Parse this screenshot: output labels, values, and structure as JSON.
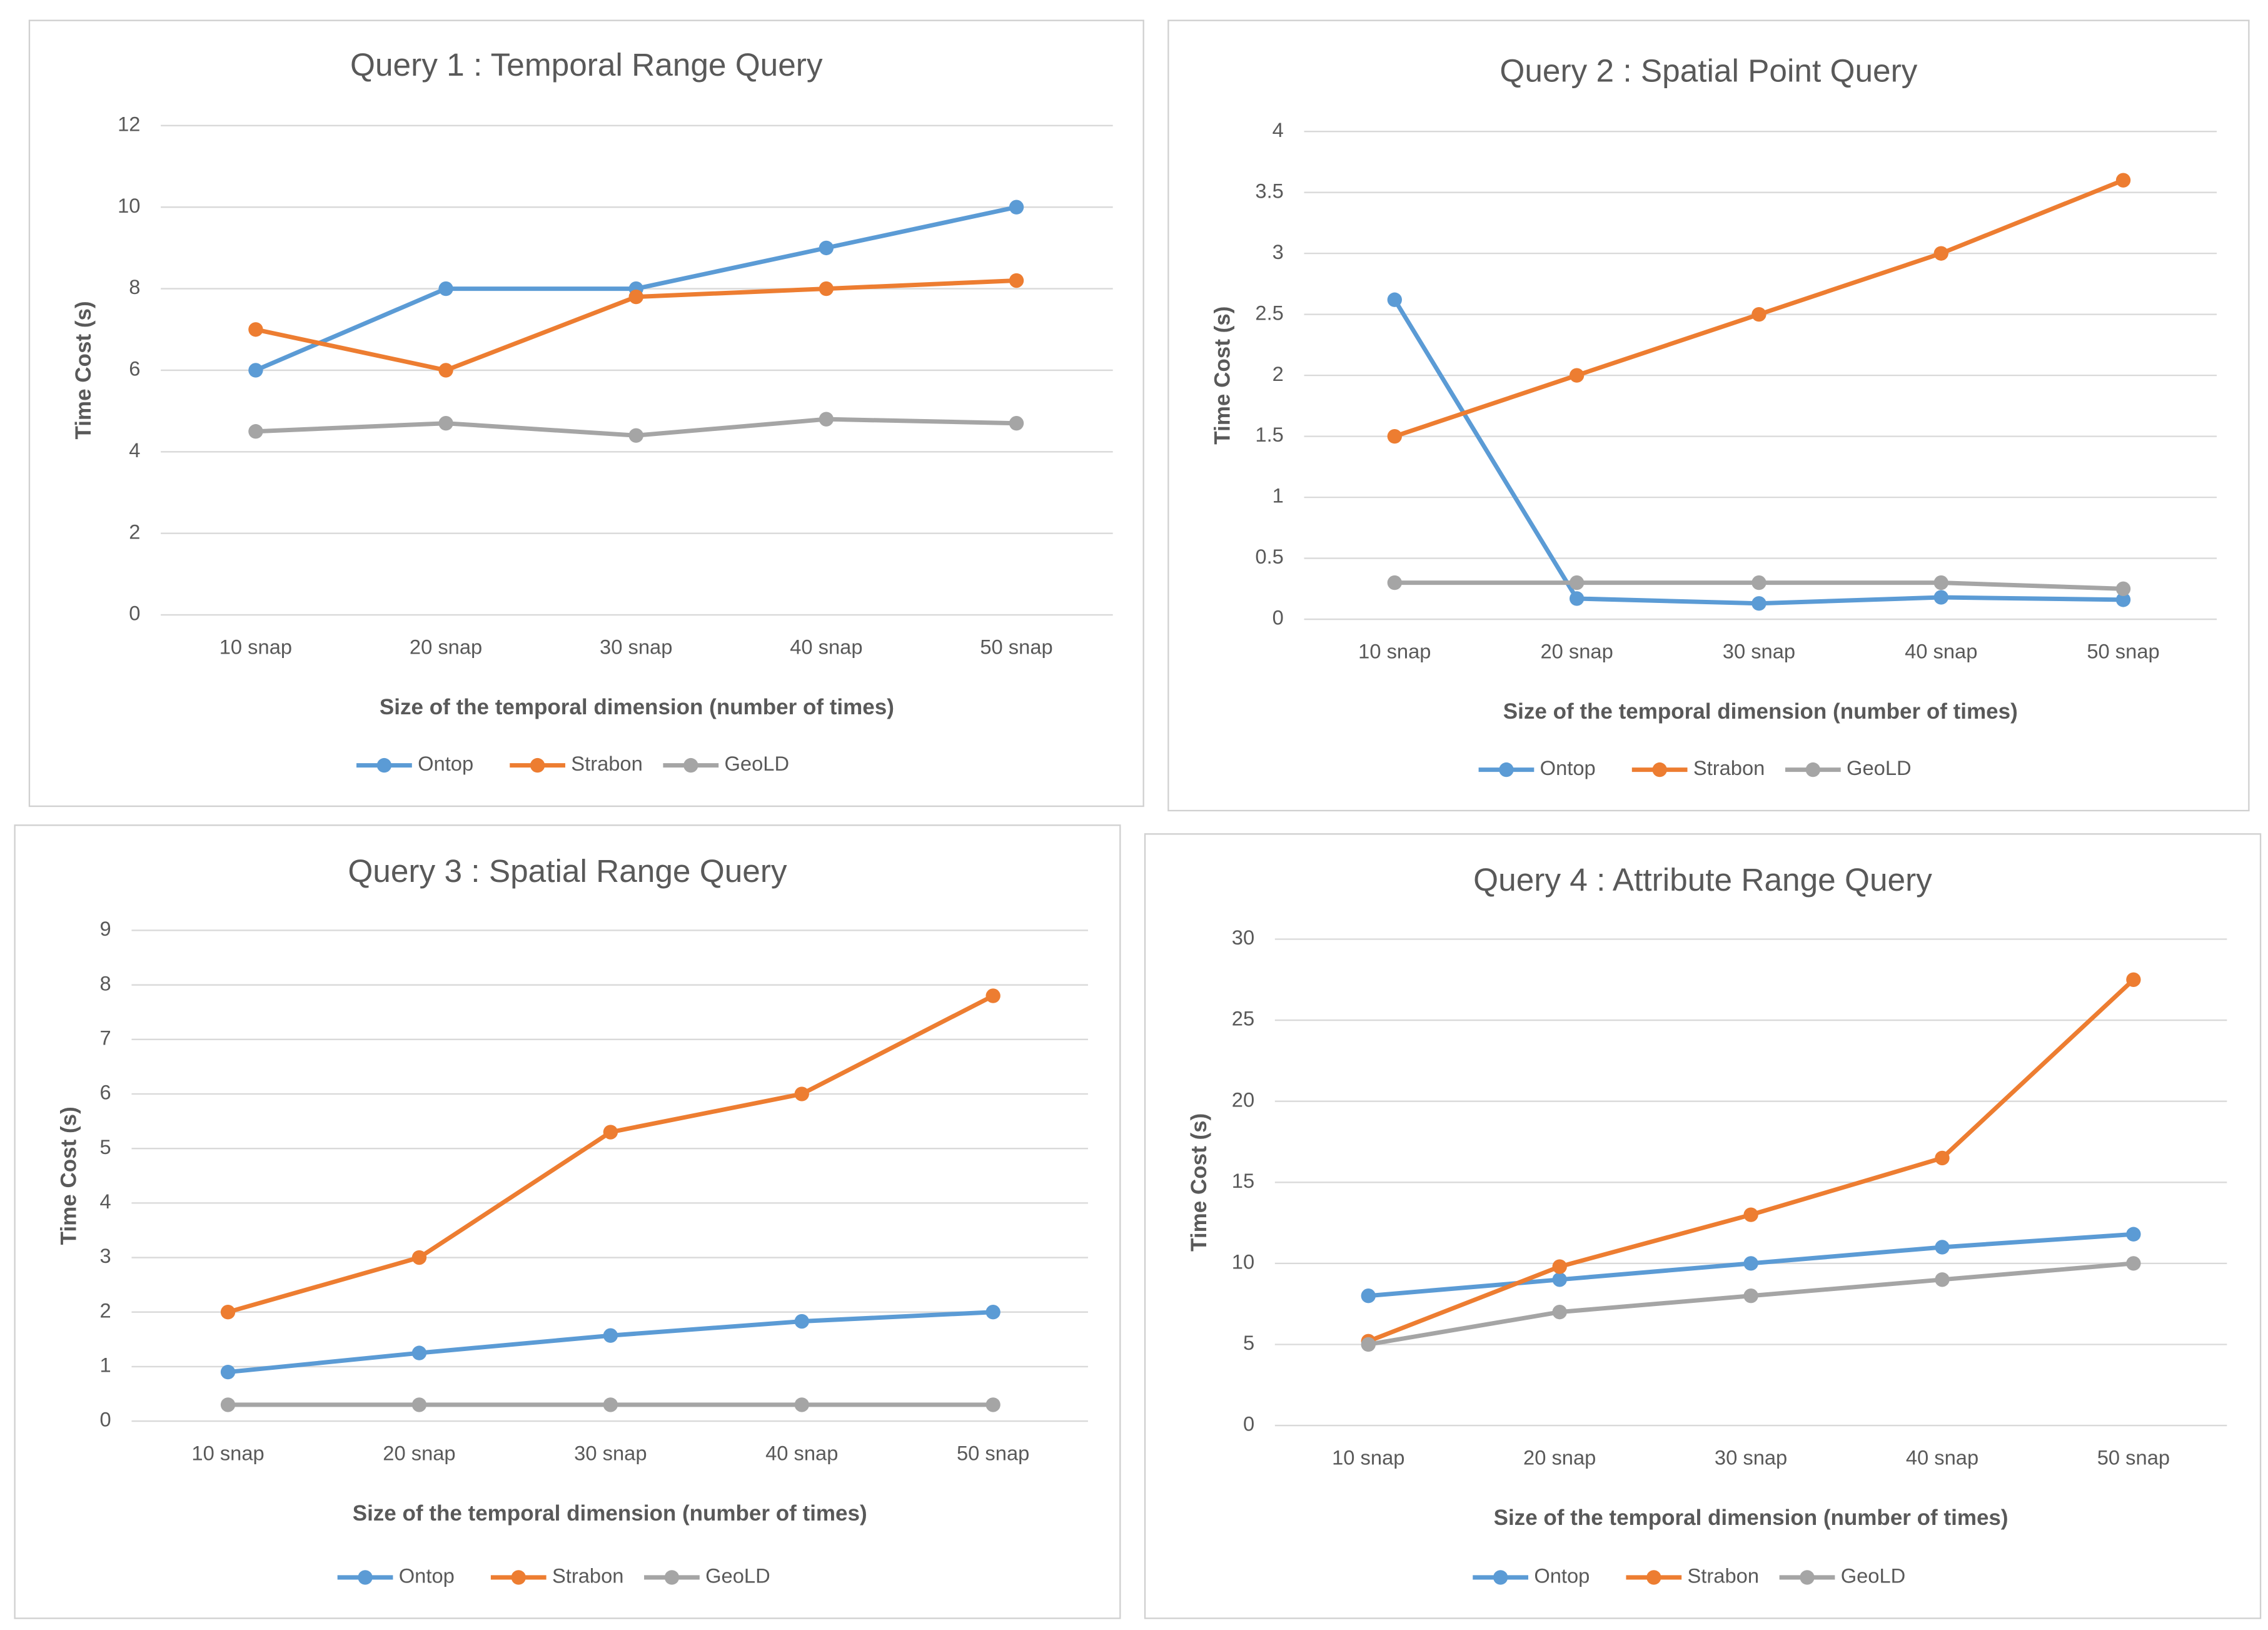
{
  "chart_data": [
    {
      "type": "line",
      "title": "Query 1 : Temporal Range Query",
      "x_label": "Size of the temporal dimension (number of times)",
      "y_label": "Time Cost (s)",
      "categories": [
        "10 snap",
        "20 snap",
        "30 snap",
        "40 snap",
        "50 snap"
      ],
      "series": [
        {
          "name": "Ontop",
          "color": "#5b9bd5",
          "values": [
            6,
            8,
            8,
            9,
            10
          ]
        },
        {
          "name": "Strabon",
          "color": "#ed7d31",
          "values": [
            7,
            6,
            7.8,
            8,
            8.2
          ]
        },
        {
          "name": "GeoLD",
          "color": "#a5a5a5",
          "values": [
            4.5,
            4.7,
            4.4,
            4.8,
            4.7
          ]
        }
      ],
      "ylim": [
        0,
        12
      ],
      "yticks": [
        0,
        2,
        4,
        6,
        8,
        10,
        12
      ],
      "grid": true,
      "legend": "bottom"
    },
    {
      "type": "line",
      "title": "Query 2 : Spatial Point Query",
      "x_label": "Size of the temporal dimension (number of times)",
      "y_label": "Time Cost (s)",
      "categories": [
        "10 snap",
        "20 snap",
        "30 snap",
        "40 snap",
        "50 snap"
      ],
      "series": [
        {
          "name": "Ontop",
          "color": "#5b9bd5",
          "values": [
            2.62,
            0.17,
            0.13,
            0.18,
            0.16
          ]
        },
        {
          "name": "Strabon",
          "color": "#ed7d31",
          "values": [
            1.5,
            2,
            2.5,
            3,
            3.6
          ]
        },
        {
          "name": "GeoLD",
          "color": "#a5a5a5",
          "values": [
            0.3,
            0.3,
            0.3,
            0.3,
            0.25
          ]
        }
      ],
      "ylim": [
        0,
        4
      ],
      "yticks": [
        0,
        0.5,
        1,
        1.5,
        2,
        2.5,
        3,
        3.5,
        4
      ],
      "grid": true,
      "legend": "bottom"
    },
    {
      "type": "line",
      "title": "Query 3 : Spatial Range Query",
      "x_label": "Size of the temporal dimension (number of times)",
      "y_label": "Time Cost (s)",
      "categories": [
        "10 snap",
        "20 snap",
        "30 snap",
        "40 snap",
        "50 snap"
      ],
      "series": [
        {
          "name": "Ontop",
          "color": "#5b9bd5",
          "values": [
            0.9,
            1.25,
            1.57,
            1.83,
            2
          ]
        },
        {
          "name": "Strabon",
          "color": "#ed7d31",
          "values": [
            2,
            3,
            5.3,
            6,
            7.8
          ]
        },
        {
          "name": "GeoLD",
          "color": "#a5a5a5",
          "values": [
            0.3,
            0.3,
            0.3,
            0.3,
            0.3
          ]
        }
      ],
      "ylim": [
        0,
        9
      ],
      "yticks": [
        0,
        1,
        2,
        3,
        4,
        5,
        6,
        7,
        8,
        9
      ],
      "grid": true,
      "legend": "bottom"
    },
    {
      "type": "line",
      "title": "Query 4 : Attribute Range Query",
      "x_label": "Size of the temporal dimension (number of times)",
      "y_label": "Time Cost (s)",
      "categories": [
        "10 snap",
        "20 snap",
        "30 snap",
        "40 snap",
        "50 snap"
      ],
      "series": [
        {
          "name": "Ontop",
          "color": "#5b9bd5",
          "values": [
            8,
            9,
            10,
            11,
            11.8
          ]
        },
        {
          "name": "Strabon",
          "color": "#ed7d31",
          "values": [
            5.2,
            9.8,
            13,
            16.5,
            27.5
          ]
        },
        {
          "name": "GeoLD",
          "color": "#a5a5a5",
          "values": [
            5,
            7,
            8,
            9,
            10
          ]
        }
      ],
      "ylim": [
        0,
        30
      ],
      "yticks": [
        0,
        5,
        10,
        15,
        20,
        25,
        30
      ],
      "grid": true,
      "legend": "bottom"
    }
  ]
}
